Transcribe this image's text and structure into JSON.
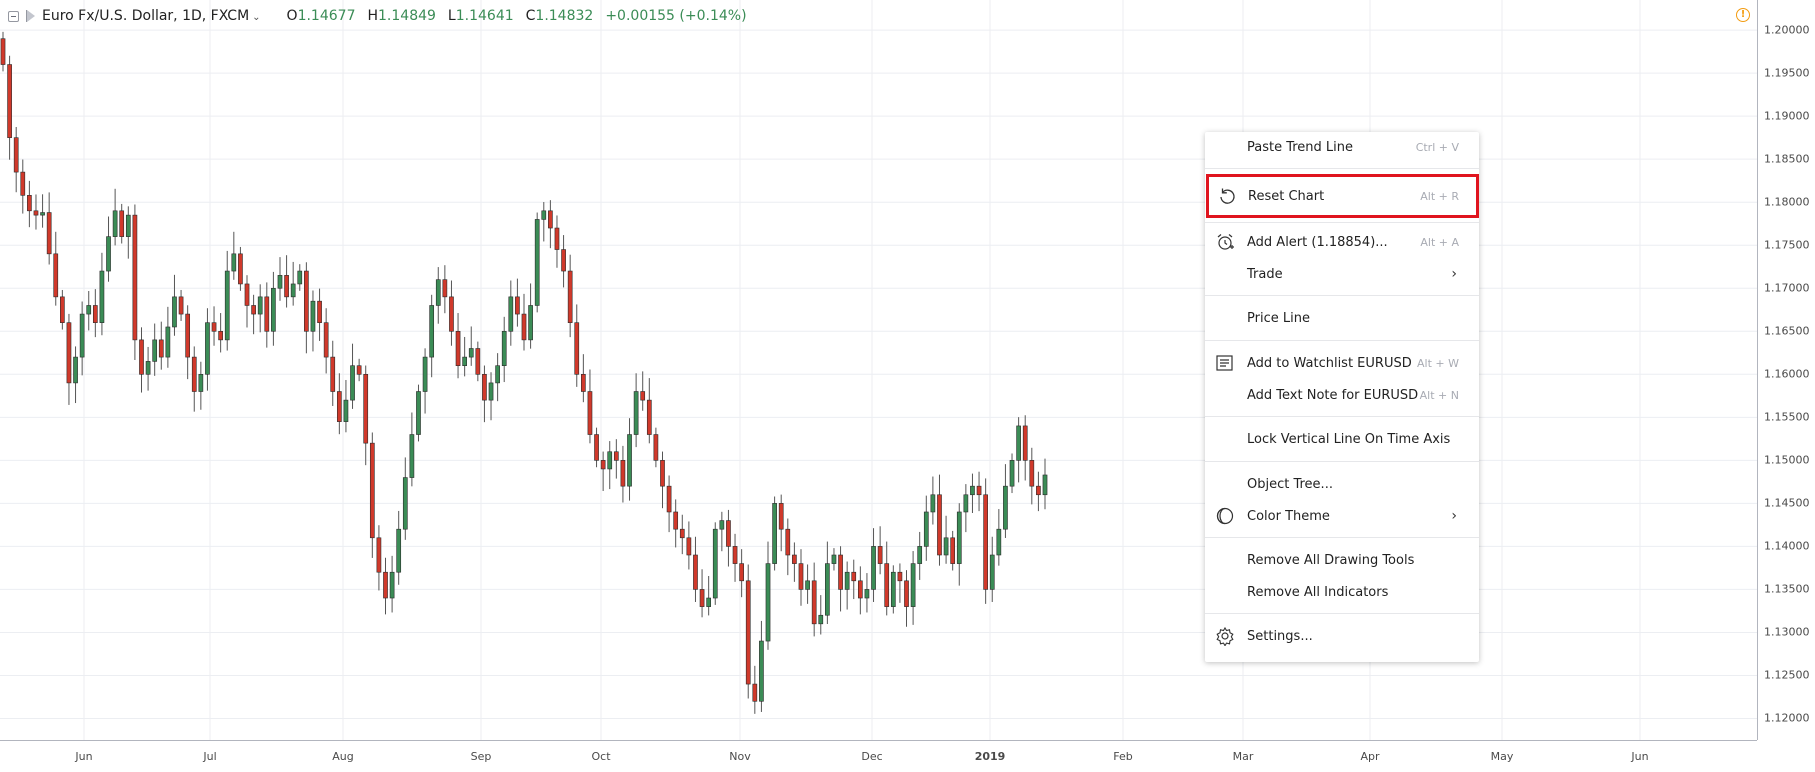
{
  "legend": {
    "symbol": "Euro Fx/U.S. Dollar, 1D, FXCM",
    "open_label": "O",
    "open": "1.14677",
    "high_label": "H",
    "high": "1.14849",
    "low_label": "L",
    "low": "1.14641",
    "close_label": "C",
    "close": "1.14832",
    "change": "+0.00155 (+0.14%)"
  },
  "warning_icon": "!",
  "colors": {
    "up": "#3b8c56",
    "down": "#d0392b",
    "wick": "#555555",
    "grid": "#eceef2",
    "highlight": "#e0141e"
  },
  "price_axis": [
    "1.20000",
    "1.19500",
    "1.19000",
    "1.18500",
    "1.18000",
    "1.17500",
    "1.17000",
    "1.16500",
    "1.16000",
    "1.15500",
    "1.15000",
    "1.14500",
    "1.14000",
    "1.13500",
    "1.13000",
    "1.12500",
    "1.12000"
  ],
  "time_axis": [
    "Jun",
    "Jul",
    "Aug",
    "Sep",
    "Oct",
    "Nov",
    "Dec",
    "2019",
    "Feb",
    "Mar",
    "Apr",
    "May",
    "Jun"
  ],
  "context_menu": {
    "items": [
      {
        "label": "Paste Trend Line",
        "shortcut": "Ctrl + V",
        "icon": ""
      },
      {
        "label": "Reset Chart",
        "shortcut": "Alt + R",
        "icon": "reset-icon"
      },
      {
        "label": "Add Alert (1.18854)...",
        "shortcut": "Alt + A",
        "icon": "alarm-clock-icon"
      },
      {
        "label": "Trade",
        "shortcut": "",
        "icon": ""
      },
      {
        "label": "Price Line",
        "shortcut": "",
        "icon": ""
      },
      {
        "label": "Add to Watchlist EURUSD",
        "shortcut": "Alt + W",
        "icon": "watchlist-icon"
      },
      {
        "label": "Add Text Note for EURUSD",
        "shortcut": "Alt + N",
        "icon": ""
      },
      {
        "label": "Lock Vertical Line On Time Axis",
        "shortcut": "",
        "icon": ""
      },
      {
        "label": "Object Tree...",
        "shortcut": "",
        "icon": ""
      },
      {
        "label": "Color Theme",
        "shortcut": "",
        "icon": "color-theme-icon"
      },
      {
        "label": "Remove All Drawing Tools",
        "shortcut": "",
        "icon": ""
      },
      {
        "label": "Remove All Indicators",
        "shortcut": "",
        "icon": ""
      },
      {
        "label": "Settings...",
        "shortcut": "",
        "icon": "gear-icon"
      }
    ],
    "submenu_arrow": "›"
  },
  "chart_data": {
    "type": "candlestick",
    "symbol": "EURUSD",
    "timeframe": "1D",
    "ylim": [
      1.1175,
      1.2035
    ],
    "x_ticks": [
      "Jun",
      "Jul",
      "Aug",
      "Sep",
      "Oct",
      "Nov",
      "Dec",
      "2019",
      "Feb",
      "Mar",
      "Apr",
      "May",
      "Jun"
    ],
    "close_series": [
      1.196,
      1.1875,
      1.1835,
      1.1808,
      1.179,
      1.1785,
      1.1788,
      1.174,
      1.169,
      1.166,
      1.159,
      1.162,
      1.167,
      1.168,
      1.166,
      1.172,
      1.176,
      1.179,
      1.176,
      1.1785,
      1.164,
      1.16,
      1.1615,
      1.164,
      1.162,
      1.1655,
      1.169,
      1.167,
      1.162,
      1.158,
      1.16,
      1.166,
      1.165,
      1.164,
      1.172,
      1.174,
      1.1705,
      1.168,
      1.167,
      1.169,
      1.165,
      1.17,
      1.1715,
      1.169,
      1.1705,
      1.172,
      1.165,
      1.1685,
      1.166,
      1.162,
      1.158,
      1.1545,
      1.157,
      1.161,
      1.16,
      1.152,
      1.141,
      1.137,
      1.134,
      1.137,
      1.142,
      1.148,
      1.153,
      1.158,
      1.162,
      1.168,
      1.171,
      1.169,
      1.165,
      1.161,
      1.162,
      1.163,
      1.16,
      1.157,
      1.159,
      1.161,
      1.165,
      1.169,
      1.167,
      1.164,
      1.168,
      1.178,
      1.179,
      1.177,
      1.1745,
      1.172,
      1.166,
      1.16,
      1.158,
      1.153,
      1.15,
      1.149,
      1.151,
      1.15,
      1.147,
      1.153,
      1.158,
      1.157,
      1.153,
      1.15,
      1.147,
      1.144,
      1.142,
      1.141,
      1.139,
      1.135,
      1.133,
      1.134,
      1.142,
      1.143,
      1.14,
      1.138,
      1.136,
      1.124,
      1.122,
      1.129,
      1.138,
      1.145,
      1.142,
      1.139,
      1.138,
      1.135,
      1.136,
      1.131,
      1.132,
      1.138,
      1.139,
      1.135,
      1.137,
      1.136,
      1.134,
      1.135,
      1.14,
      1.138,
      1.133,
      1.137,
      1.136,
      1.133,
      1.138,
      1.14,
      1.144,
      1.146,
      1.139,
      1.141,
      1.138,
      1.144,
      1.146,
      1.147,
      1.146,
      1.135,
      1.139,
      1.142,
      1.147,
      1.15,
      1.154,
      1.15,
      1.147,
      1.146,
      1.1483
    ]
  }
}
